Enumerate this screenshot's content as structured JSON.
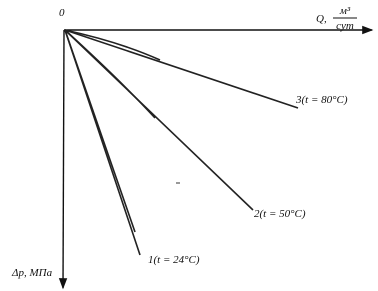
{
  "origin_label": "0",
  "x_axis": {
    "label": "Q,",
    "unit_numerator": "м³",
    "unit_denominator": "сут"
  },
  "y_axis": {
    "label": "Δp, МПа"
  },
  "curves": [
    {
      "label": "3(t = 80°C)"
    },
    {
      "label": "2(t = 50°C)"
    },
    {
      "label": "1(t = 24°C)"
    }
  ]
}
